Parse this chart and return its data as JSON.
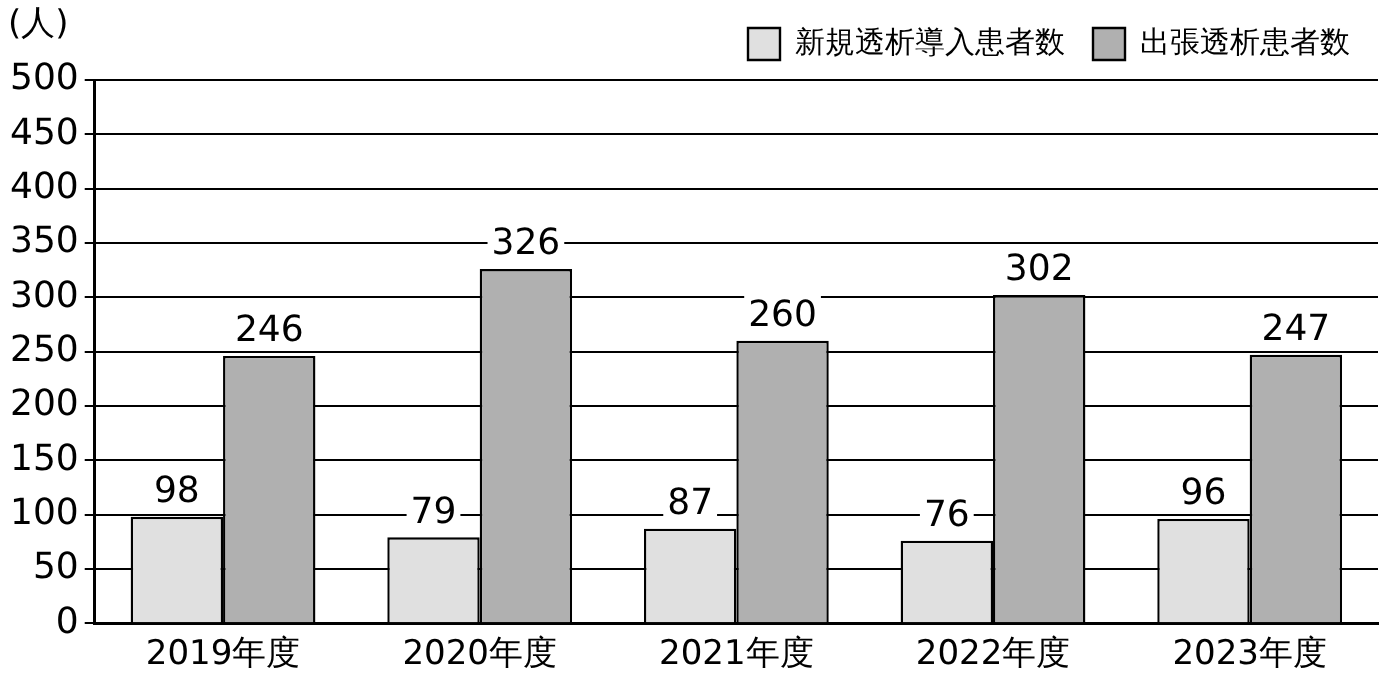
{
  "chart_data": {
    "type": "bar",
    "ylabel": "(人)",
    "categories": [
      "2019年度",
      "2020年度",
      "2021年度",
      "2022年度",
      "2023年度"
    ],
    "series": [
      {
        "name": "新規透析導入患者数",
        "color": "#e0e0e0",
        "values": [
          98,
          79,
          87,
          76,
          96
        ]
      },
      {
        "name": "出張透析患者数",
        "color": "#b0b0b0",
        "values": [
          246,
          326,
          260,
          302,
          247
        ]
      }
    ],
    "ylim": [
      0,
      500
    ],
    "yticks": [
      0,
      50,
      100,
      150,
      200,
      250,
      300,
      350,
      400,
      450,
      500
    ],
    "grid": "y",
    "legend": "top right",
    "data_labels": true
  }
}
